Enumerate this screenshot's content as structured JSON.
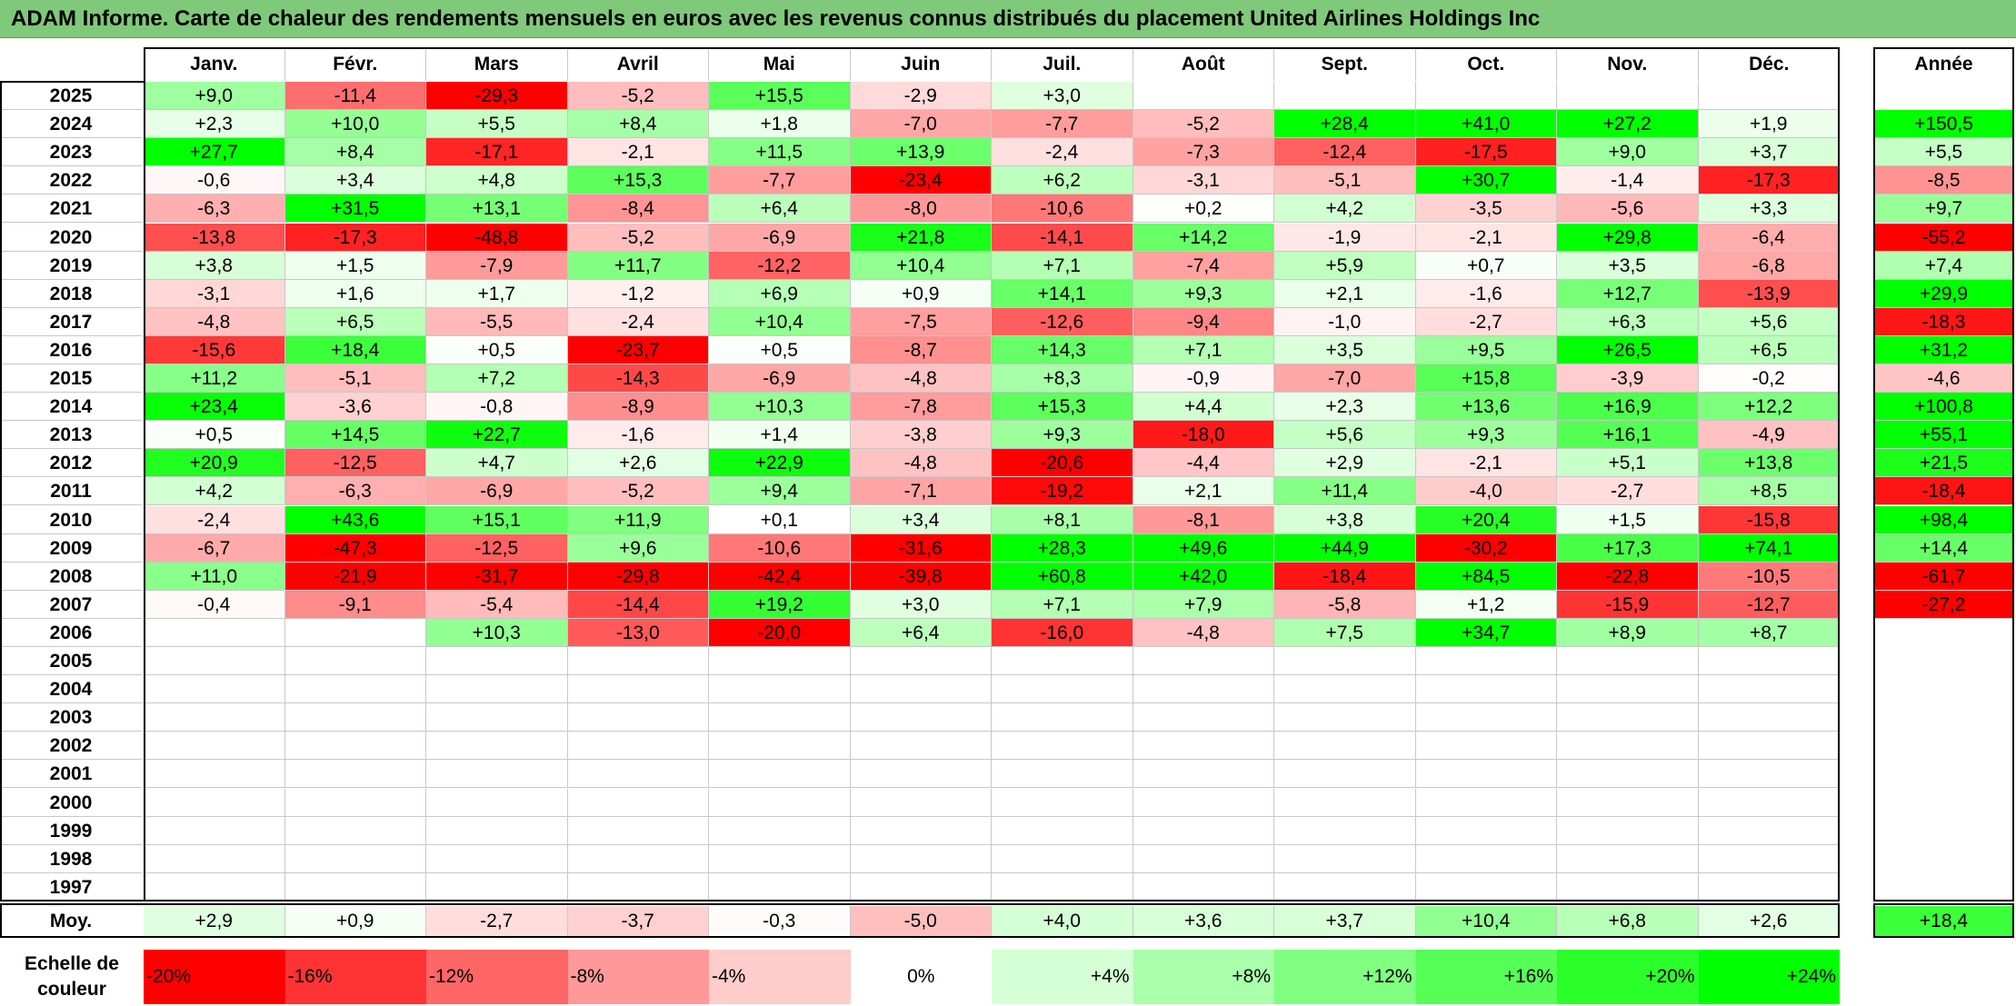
{
  "title": "ADAM Informe. Carte de chaleur des rendements mensuels en euros avec les revenus connus distribués du placement United Airlines Holdings Inc",
  "colors": {
    "title_bg": "#7fc97a",
    "strong_negative": "#ff0000",
    "neutral": "#ffffff",
    "strong_positive": "#00ff00"
  },
  "chart_data": {
    "type": "heatmap",
    "title": "ADAM Informe. Carte de chaleur des rendements mensuels en euros avec les revenus connus distribués du placement United Airlines Holdings Inc",
    "columns": [
      "Janv.",
      "Févr.",
      "Mars",
      "Avril",
      "Mai",
      "Juin",
      "Juil.",
      "Août",
      "Sept.",
      "Oct.",
      "Nov.",
      "Déc."
    ],
    "year_header": "Année",
    "avg_label": "Moy.",
    "rows": [
      {
        "year": "2025",
        "months": [
          "+9,0",
          "-11,4",
          "-29,3",
          "-5,2",
          "+15,5",
          "-2,9",
          "+3,0",
          "",
          "",
          "",
          "",
          ""
        ],
        "annual": ""
      },
      {
        "year": "2024",
        "months": [
          "+2,3",
          "+10,0",
          "+5,5",
          "+8,4",
          "+1,8",
          "-7,0",
          "-7,7",
          "-5,2",
          "+28,4",
          "+41,0",
          "+27,2",
          "+1,9"
        ],
        "annual": "+150,5"
      },
      {
        "year": "2023",
        "months": [
          "+27,7",
          "+8,4",
          "-17,1",
          "-2,1",
          "+11,5",
          "+13,9",
          "-2,4",
          "-7,3",
          "-12,4",
          "-17,5",
          "+9,0",
          "+3,7"
        ],
        "annual": "+5,5"
      },
      {
        "year": "2022",
        "months": [
          "-0,6",
          "+3,4",
          "+4,8",
          "+15,3",
          "-7,7",
          "-23,4",
          "+6,2",
          "-3,1",
          "-5,1",
          "+30,7",
          "-1,4",
          "-17,3"
        ],
        "annual": "-8,5"
      },
      {
        "year": "2021",
        "months": [
          "-6,3",
          "+31,5",
          "+13,1",
          "-8,4",
          "+6,4",
          "-8,0",
          "-10,6",
          "+0,2",
          "+4,2",
          "-3,5",
          "-5,6",
          "+3,3"
        ],
        "annual": "+9,7"
      },
      {
        "year": "2020",
        "months": [
          "-13,8",
          "-17,3",
          "-48,8",
          "-5,2",
          "-6,9",
          "+21,8",
          "-14,1",
          "+14,2",
          "-1,9",
          "-2,1",
          "+29,8",
          "-6,4"
        ],
        "annual": "-55,2"
      },
      {
        "year": "2019",
        "months": [
          "+3,8",
          "+1,5",
          "-7,9",
          "+11,7",
          "-12,2",
          "+10,4",
          "+7,1",
          "-7,4",
          "+5,9",
          "+0,7",
          "+3,5",
          "-6,8"
        ],
        "annual": "+7,4"
      },
      {
        "year": "2018",
        "months": [
          "-3,1",
          "+1,6",
          "+1,7",
          "-1,2",
          "+6,9",
          "+0,9",
          "+14,1",
          "+9,3",
          "+2,1",
          "-1,6",
          "+12,7",
          "-13,9"
        ],
        "annual": "+29,9"
      },
      {
        "year": "2017",
        "months": [
          "-4,8",
          "+6,5",
          "-5,5",
          "-2,4",
          "+10,4",
          "-7,5",
          "-12,6",
          "-9,4",
          "-1,0",
          "-2,7",
          "+6,3",
          "+5,6"
        ],
        "annual": "-18,3"
      },
      {
        "year": "2016",
        "months": [
          "-15,6",
          "+18,4",
          "+0,5",
          "-23,7",
          "+0,5",
          "-8,7",
          "+14,3",
          "+7,1",
          "+3,5",
          "+9,5",
          "+26,5",
          "+6,5"
        ],
        "annual": "+31,2"
      },
      {
        "year": "2015",
        "months": [
          "+11,2",
          "-5,1",
          "+7,2",
          "-14,3",
          "-6,9",
          "-4,8",
          "+8,3",
          "-0,9",
          "-7,0",
          "+15,8",
          "-3,9",
          "-0,2"
        ],
        "annual": "-4,6"
      },
      {
        "year": "2014",
        "months": [
          "+23,4",
          "-3,6",
          "-0,8",
          "-8,9",
          "+10,3",
          "-7,8",
          "+15,3",
          "+4,4",
          "+2,3",
          "+13,6",
          "+16,9",
          "+12,2"
        ],
        "annual": "+100,8"
      },
      {
        "year": "2013",
        "months": [
          "+0,5",
          "+14,5",
          "+22,7",
          "-1,6",
          "+1,4",
          "-3,8",
          "+9,3",
          "-18,0",
          "+5,6",
          "+9,3",
          "+16,1",
          "-4,9"
        ],
        "annual": "+55,1"
      },
      {
        "year": "2012",
        "months": [
          "+20,9",
          "-12,5",
          "+4,7",
          "+2,6",
          "+22,9",
          "-4,8",
          "-20,6",
          "-4,4",
          "+2,9",
          "-2,1",
          "+5,1",
          "+13,8"
        ],
        "annual": "+21,5"
      },
      {
        "year": "2011",
        "months": [
          "+4,2",
          "-6,3",
          "-6,9",
          "-5,2",
          "+9,4",
          "-7,1",
          "-19,2",
          "+2,1",
          "+11,4",
          "-4,0",
          "-2,7",
          "+8,5"
        ],
        "annual": "-18,4"
      },
      {
        "year": "2010",
        "months": [
          "-2,4",
          "+43,6",
          "+15,1",
          "+11,9",
          "+0,1",
          "+3,4",
          "+8,1",
          "-8,1",
          "+3,8",
          "+20,4",
          "+1,5",
          "-15,8"
        ],
        "annual": "+98,4"
      },
      {
        "year": "2009",
        "months": [
          "-6,7",
          "-47,3",
          "-12,5",
          "+9,6",
          "-10,6",
          "-31,6",
          "+28,3",
          "+49,6",
          "+44,9",
          "-30,2",
          "+17,3",
          "+74,1"
        ],
        "annual": "+14,4"
      },
      {
        "year": "2008",
        "months": [
          "+11,0",
          "-21,9",
          "-31,7",
          "-29,8",
          "-42,4",
          "-39,8",
          "+60,8",
          "+42,0",
          "-18,4",
          "+84,5",
          "-22,8",
          "-10,5"
        ],
        "annual": "-61,7"
      },
      {
        "year": "2007",
        "months": [
          "-0,4",
          "-9,1",
          "-5,4",
          "-14,4",
          "+19,2",
          "+3,0",
          "+7,1",
          "+7,9",
          "-5,8",
          "+1,2",
          "-15,9",
          "-12,7"
        ],
        "annual": "-27,2"
      },
      {
        "year": "2006",
        "months": [
          "",
          "",
          "+10,3",
          "-13,0",
          "-20,0",
          "+6,4",
          "-16,0",
          "-4,8",
          "+7,5",
          "+34,7",
          "+8,9",
          "+8,7"
        ],
        "annual": ""
      },
      {
        "year": "2005",
        "months": [
          "",
          "",
          "",
          "",
          "",
          "",
          "",
          "",
          "",
          "",
          "",
          ""
        ],
        "annual": ""
      },
      {
        "year": "2004",
        "months": [
          "",
          "",
          "",
          "",
          "",
          "",
          "",
          "",
          "",
          "",
          "",
          ""
        ],
        "annual": ""
      },
      {
        "year": "2003",
        "months": [
          "",
          "",
          "",
          "",
          "",
          "",
          "",
          "",
          "",
          "",
          "",
          ""
        ],
        "annual": ""
      },
      {
        "year": "2002",
        "months": [
          "",
          "",
          "",
          "",
          "",
          "",
          "",
          "",
          "",
          "",
          "",
          ""
        ],
        "annual": ""
      },
      {
        "year": "2001",
        "months": [
          "",
          "",
          "",
          "",
          "",
          "",
          "",
          "",
          "",
          "",
          "",
          ""
        ],
        "annual": ""
      },
      {
        "year": "2000",
        "months": [
          "",
          "",
          "",
          "",
          "",
          "",
          "",
          "",
          "",
          "",
          "",
          ""
        ],
        "annual": ""
      },
      {
        "year": "1999",
        "months": [
          "",
          "",
          "",
          "",
          "",
          "",
          "",
          "",
          "",
          "",
          "",
          ""
        ],
        "annual": ""
      },
      {
        "year": "1998",
        "months": [
          "",
          "",
          "",
          "",
          "",
          "",
          "",
          "",
          "",
          "",
          "",
          ""
        ],
        "annual": ""
      },
      {
        "year": "1997",
        "months": [
          "",
          "",
          "",
          "",
          "",
          "",
          "",
          "",
          "",
          "",
          "",
          ""
        ],
        "annual": ""
      }
    ],
    "averages": {
      "months": [
        "+2,9",
        "+0,9",
        "-2,7",
        "-3,7",
        "-0,3",
        "-5,0",
        "+4,0",
        "+3,6",
        "+3,7",
        "+10,4",
        "+6,8",
        "+2,6"
      ],
      "annual": "+18,4"
    },
    "scale": {
      "label": "Echelle de couleur",
      "steps": [
        {
          "label": "-20%",
          "value": -20
        },
        {
          "label": "-16%",
          "value": -16
        },
        {
          "label": "-12%",
          "value": -12
        },
        {
          "label": "-8%",
          "value": -8
        },
        {
          "label": "-4%",
          "value": -4
        },
        {
          "label": "0%",
          "value": 0
        },
        {
          "label": "+4%",
          "value": 4
        },
        {
          "label": "+8%",
          "value": 8
        },
        {
          "label": "+12%",
          "value": 12
        },
        {
          "label": "+16%",
          "value": 16
        },
        {
          "label": "+20%",
          "value": 20
        },
        {
          "label": "+24%",
          "value": 24
        }
      ],
      "range": [
        -20,
        24
      ]
    }
  }
}
